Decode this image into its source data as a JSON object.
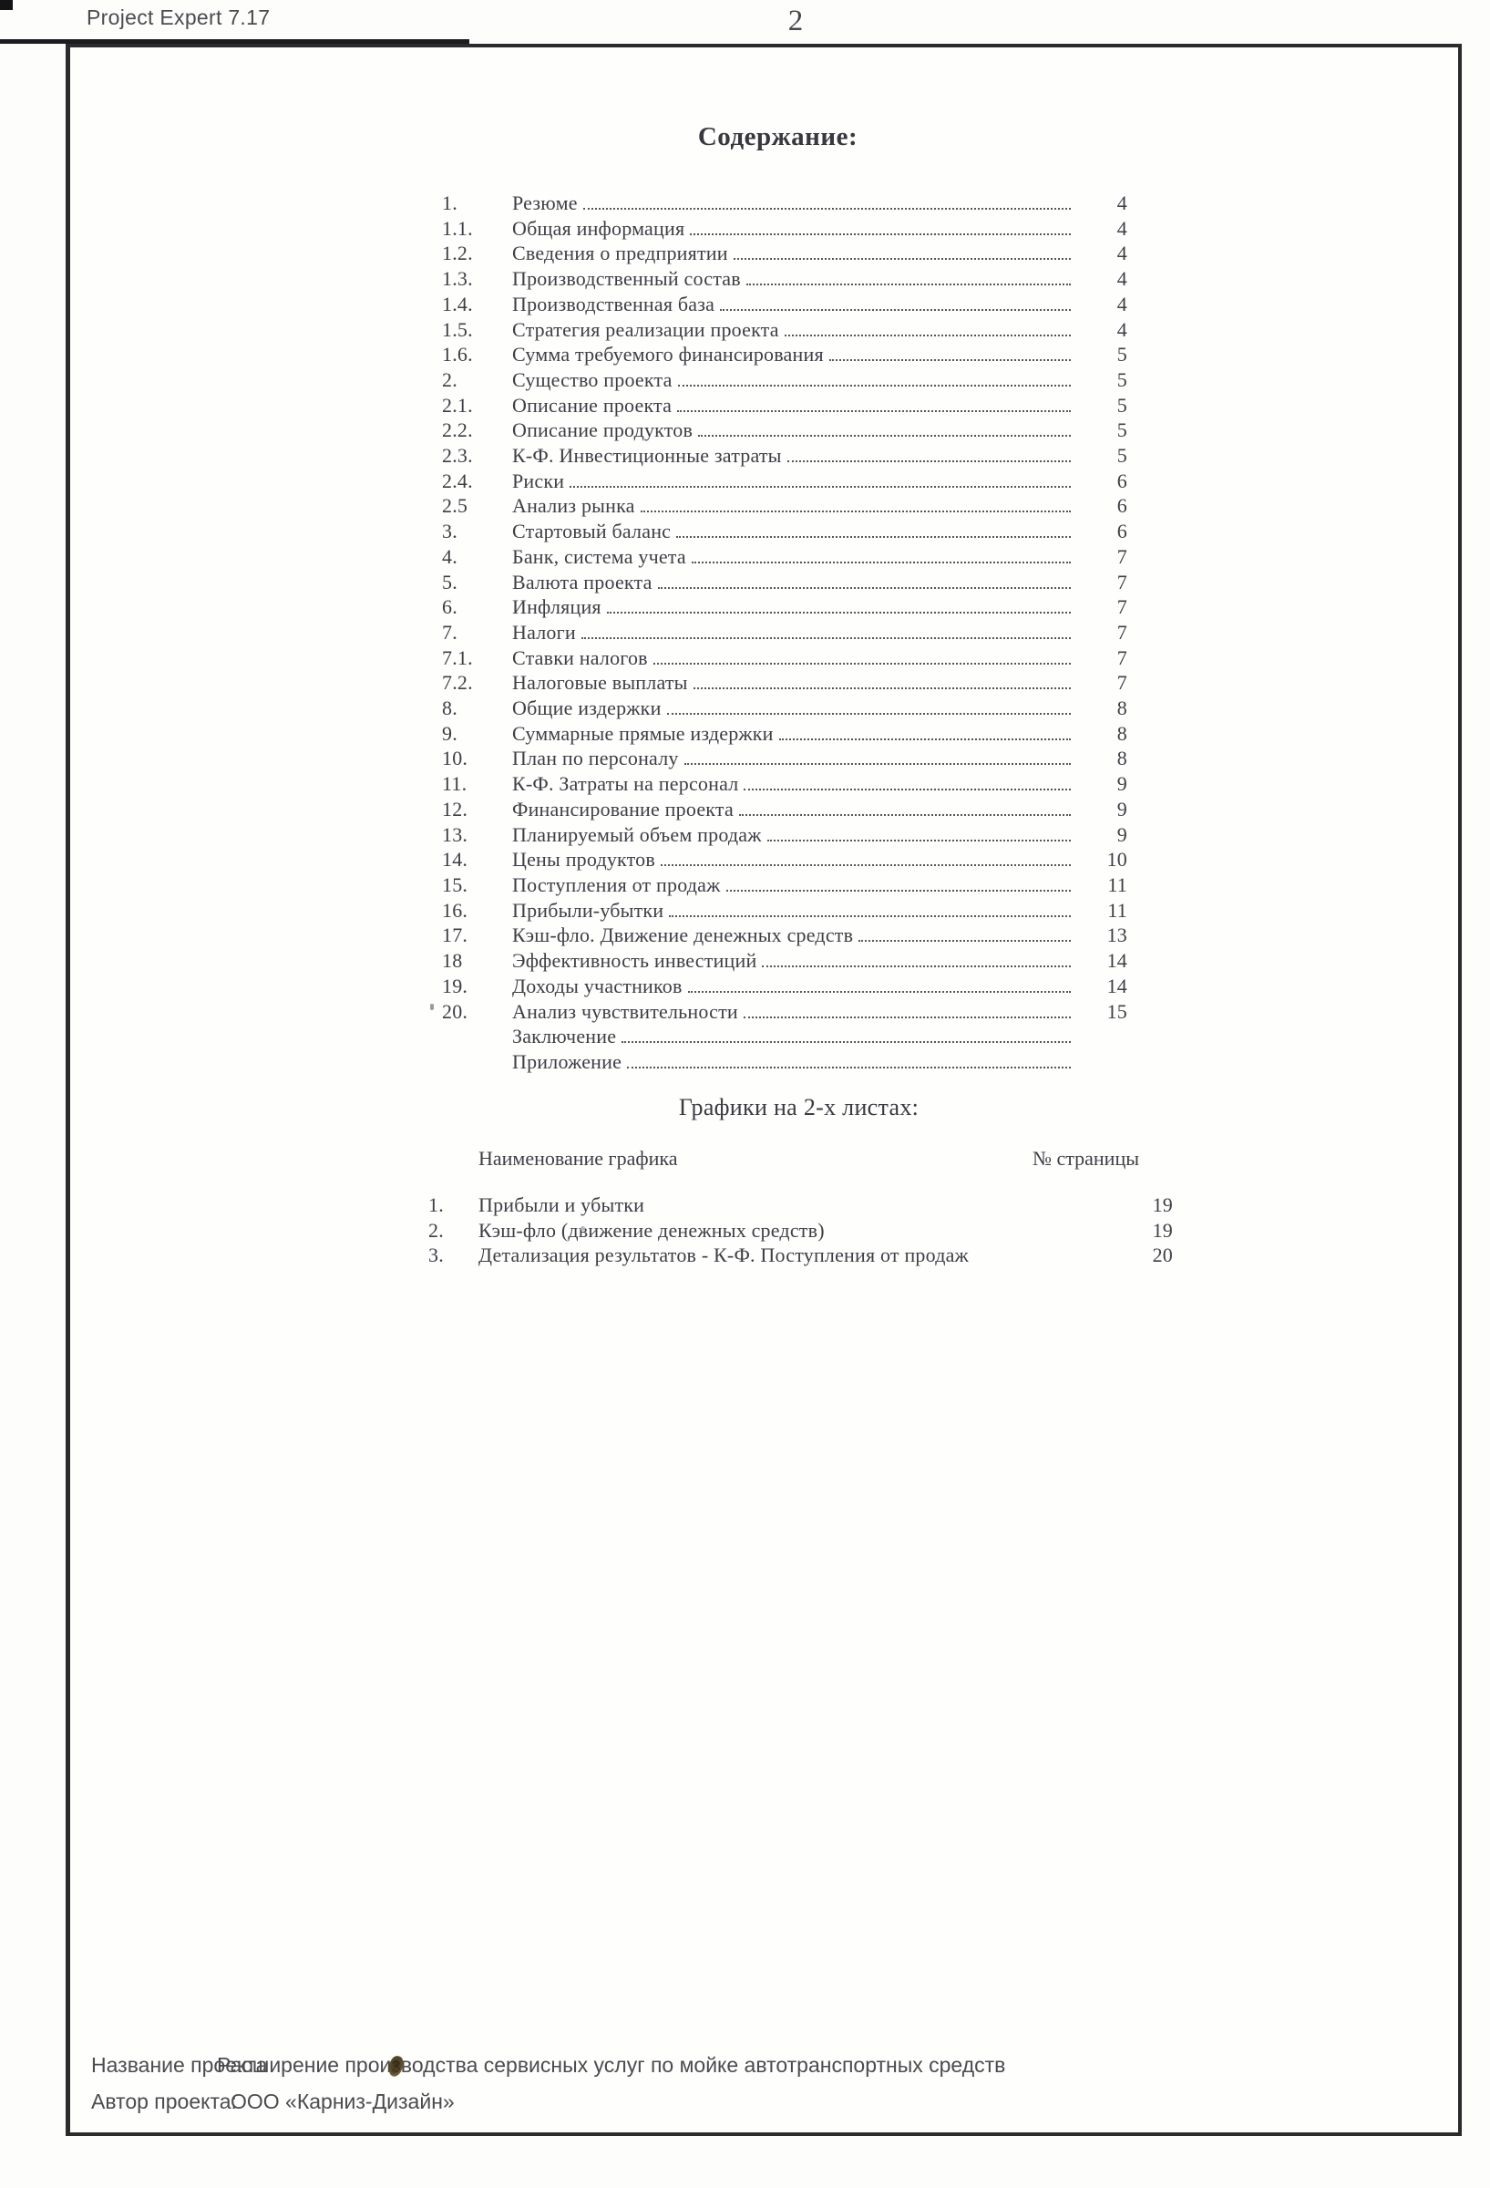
{
  "colors": {
    "paper": "#fdfdfc",
    "ink_serif": "#3e3e46",
    "ink_sans": "#4b4b51",
    "frame_border": "#2b2b2e",
    "leader_dots": "#55555c"
  },
  "header": {
    "app_title": "Project Expert  7.17",
    "page_number": "2"
  },
  "toc": {
    "title": "Содержание:",
    "entries": [
      {
        "num": "1.",
        "title": "Резюме",
        "page": "4"
      },
      {
        "num": "1.1.",
        "title": "Общая информация",
        "page": "4"
      },
      {
        "num": "1.2.",
        "title": "Сведения о предприятии",
        "page": "4"
      },
      {
        "num": "1.3.",
        "title": "Производственный состав",
        "page": "4"
      },
      {
        "num": "1.4.",
        "title": "Производственная база",
        "page": "4"
      },
      {
        "num": "1.5.",
        "title": "Стратегия реализации проекта",
        "page": "4"
      },
      {
        "num": "1.6.",
        "title": "Сумма требуемого финансирования",
        "page": "5"
      },
      {
        "num": "2.",
        "title": "Существо проекта",
        "page": "5"
      },
      {
        "num": "2.1.",
        "title": "Описание проекта",
        "page": "5"
      },
      {
        "num": "2.2.",
        "title": "Описание продуктов",
        "page": "5"
      },
      {
        "num": "2.3.",
        "title": "К-Ф. Инвестиционные затраты",
        "page": "5"
      },
      {
        "num": "2.4.",
        "title": "Риски",
        "page": "6"
      },
      {
        "num": "2.5",
        "title": "Анализ рынка",
        "page": "6"
      },
      {
        "num": "3.",
        "title": "Стартовый баланс",
        "page": "6"
      },
      {
        "num": "4.",
        "title": "Банк, система учета",
        "page": "7"
      },
      {
        "num": "5.",
        "title": "Валюта проекта",
        "page": "7"
      },
      {
        "num": "6.",
        "title": "Инфляция",
        "page": "7"
      },
      {
        "num": "7.",
        "title": "Налоги",
        "page": "7"
      },
      {
        "num": "7.1.",
        "title": "Ставки налогов",
        "page": "7"
      },
      {
        "num": "7.2.",
        "title": "Налоговые выплаты",
        "page": "7"
      },
      {
        "num": "8.",
        "title": "Общие издержки",
        "page": "8"
      },
      {
        "num": "9.",
        "title": "Суммарные прямые издержки",
        "page": "8"
      },
      {
        "num": "10.",
        "title": "План по персоналу",
        "page": "8"
      },
      {
        "num": "11.",
        "title": "К-Ф. Затраты на персонал",
        "page": "9"
      },
      {
        "num": "12.",
        "title": "Финансирование проекта",
        "page": "9"
      },
      {
        "num": "13.",
        "title": "Планируемый объем продаж",
        "page": "9"
      },
      {
        "num": "14.",
        "title": "Цены продуктов",
        "page": "10"
      },
      {
        "num": "15.",
        "title": "Поступления от продаж",
        "page": "11"
      },
      {
        "num": "16.",
        "title": "Прибыли-убытки",
        "page": "11"
      },
      {
        "num": "17.",
        "title": "Кэш-фло. Движение денежных средств",
        "page": "13"
      },
      {
        "num": "18",
        "title": "Эффективность инвестиций",
        "page": "14"
      },
      {
        "num": "19.",
        "title": "Доходы участников",
        "page": "14"
      },
      {
        "num": "20.",
        "title": "Анализ чувствительности",
        "page": "15"
      },
      {
        "num": "",
        "title": "Заключение",
        "page": ""
      },
      {
        "num": "",
        "title": "Приложение",
        "page": ""
      }
    ]
  },
  "graphs": {
    "heading": "Графики на 2-х листах:",
    "columns": {
      "name": "Наименование графика",
      "page": "№ страницы"
    },
    "rows": [
      {
        "num": "1.",
        "title": "Прибыли и убытки",
        "page": "19"
      },
      {
        "num": "2.",
        "title": "Кэш-фло (движение денежных средств)",
        "page": "19"
      },
      {
        "num": "3.",
        "title": "Детализация результатов - К-Ф. Поступления от продаж",
        "page": "20"
      }
    ]
  },
  "footer": {
    "project_label": "Название проекта",
    "project_value": "Расширение производства сервисных услуг по мойке автотранспортных средств",
    "author_label": "Автор проекта:",
    "author_value": "ООО «Карниз-Дизайн»"
  }
}
